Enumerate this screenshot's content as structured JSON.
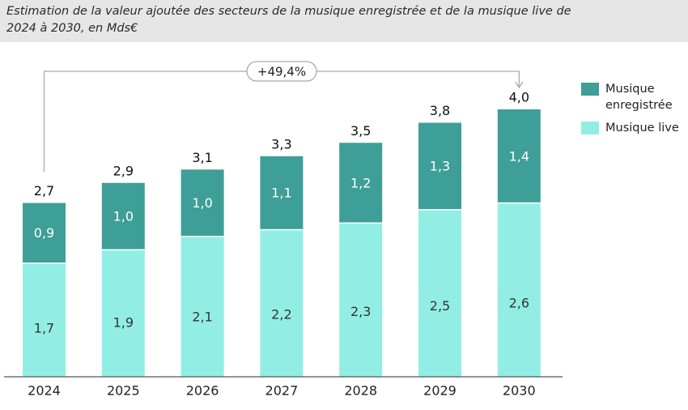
{
  "title": {
    "line1": "Estimation de la valeur ajoutée des secteurs de la musique enregistrée et de la musique live de",
    "line2": "2024 à 2030, en Mds€"
  },
  "legend": {
    "recorded_line1": "Musique",
    "recorded_line2": "enregistrée",
    "live": "Musique live"
  },
  "colors": {
    "recorded": "#3e9e98",
    "live": "#92eee4",
    "axis": "#555555",
    "label_on_bar": "#ffffff",
    "label_on_live": "#333333",
    "total_label": "#111111",
    "growth_arrow": "#aaaaaa"
  },
  "chart_data": {
    "type": "bar",
    "stacked": true,
    "categories": [
      "2024",
      "2025",
      "2026",
      "2027",
      "2028",
      "2029",
      "2030"
    ],
    "series": [
      {
        "name": "Musique live",
        "values": [
          1.7,
          1.9,
          2.1,
          2.2,
          2.3,
          2.5,
          2.6
        ],
        "labels": [
          "1,7",
          "1,9",
          "2,1",
          "2,2",
          "2,3",
          "2,5",
          "2,6"
        ]
      },
      {
        "name": "Musique enregistrée",
        "values": [
          0.9,
          1.0,
          1.0,
          1.1,
          1.2,
          1.3,
          1.4
        ],
        "labels": [
          "0,9",
          "1,0",
          "1,0",
          "1,1",
          "1,2",
          "1,3",
          "1,4"
        ]
      }
    ],
    "totals": [
      2.7,
      2.9,
      3.1,
      3.3,
      3.5,
      3.8,
      4.0
    ],
    "total_labels": [
      "2,7",
      "2,9",
      "3,1",
      "3,3",
      "3,5",
      "3,8",
      "4,0"
    ],
    "growth_annotation": {
      "from": "2024",
      "to": "2030",
      "label": "+49,4%"
    },
    "ylim": [
      0,
      4.0
    ],
    "grid": false,
    "legend_position": "top-right"
  }
}
